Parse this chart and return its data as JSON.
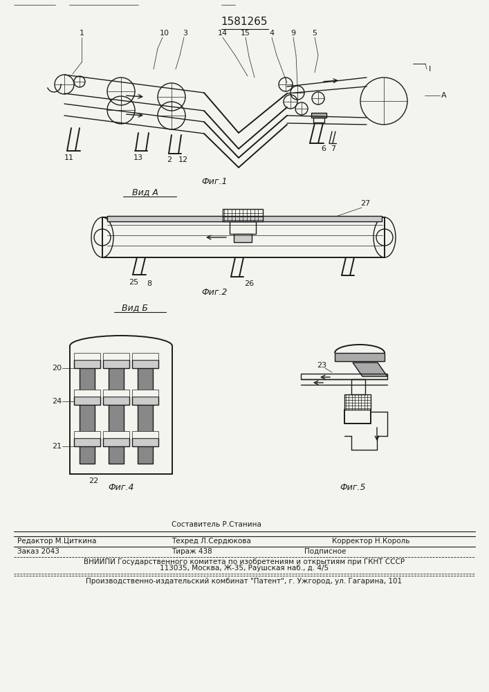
{
  "patent_number": "1581265",
  "fig1_caption": "Фиг.1",
  "fig2_caption": "Фиг.2",
  "fig4_caption": "Фиг.4",
  "fig5_caption": "Фиг.5",
  "vid_a": "Вид А",
  "vid_b": "Вид Б",
  "footer_line1a": "Редактор М.Циткина",
  "footer_line1b": "Составитель Р.Станина",
  "footer_line1c": "Техред Л.Сердюкова",
  "footer_line1d": "Корректор Н.Король",
  "footer_line2a": "Заказ 2043",
  "footer_line2b": "Тираж 438",
  "footer_line2c": "Подписное",
  "footer_line3": "ВНИИПИ Государственного комитета по изобретениям и открытиям при ГКНТ СССР",
  "footer_line4": "113035, Москва, Ж-35, Раушская наб., д. 4/5",
  "footer_line5": "Производственно-издательский комбинат \"Патент\", г. Ужгород, ул. Гагарина, 101",
  "bg_color": "#f4f4ee",
  "line_color": "#1a1a1a"
}
